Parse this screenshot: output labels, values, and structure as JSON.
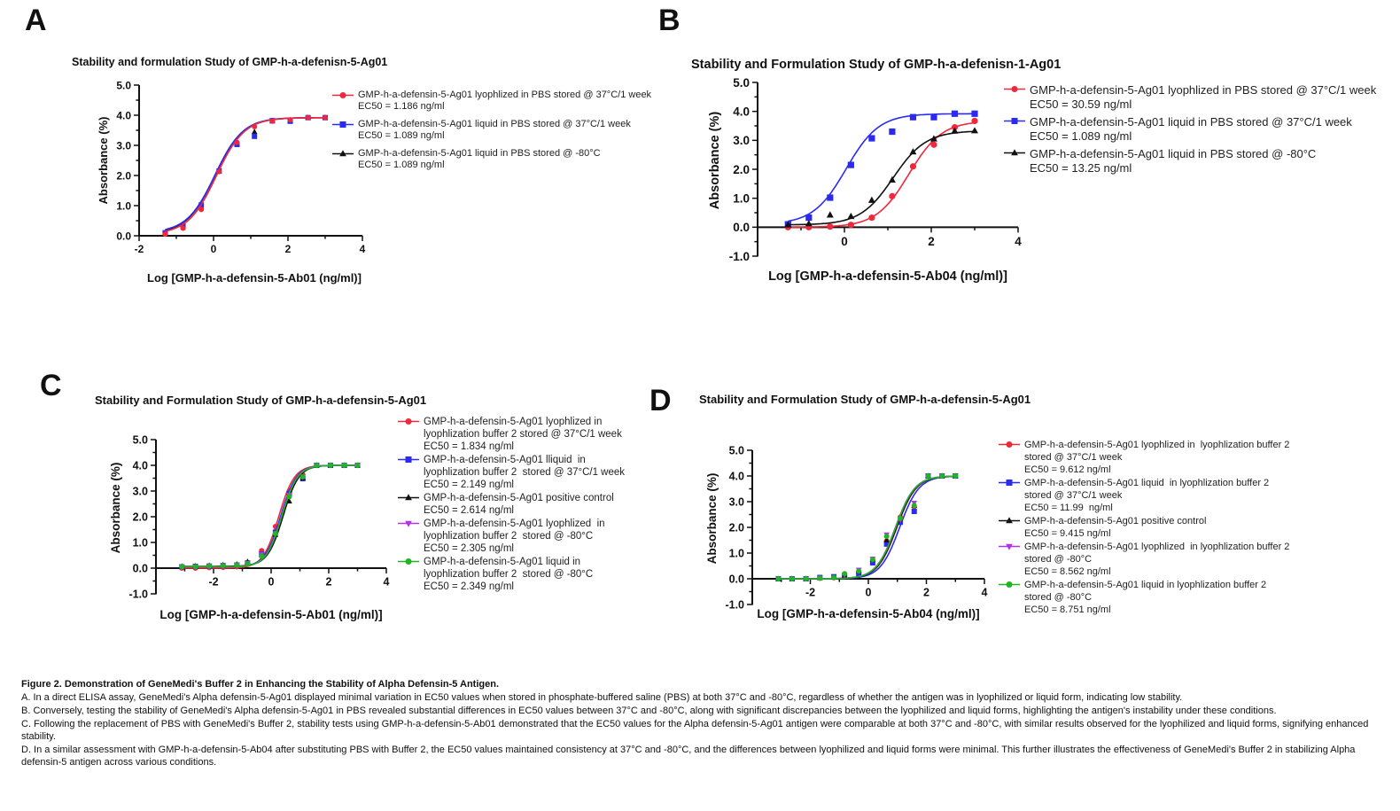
{
  "panel_letters": [
    "A",
    "B",
    "C",
    "D"
  ],
  "chart_data": [
    {
      "type": "line",
      "panel": "A",
      "title": "Stability and formulation Study of GMP-h-a-defenisn-5-Ag01",
      "xlabel": "Log [GMP-h-a-defensin-5-Ab01 (ng/ml)]",
      "ylabel": "Absorbance (%)",
      "xlim": [
        -2,
        4
      ],
      "ylim": [
        0,
        5
      ],
      "xticks": [
        "-2",
        "0",
        "2",
        "4"
      ],
      "yticks": [
        "0.0",
        "1.0",
        "2.0",
        "3.0",
        "4.0",
        "5.0"
      ],
      "legend_position": "right",
      "x": [
        -1.3,
        -0.82,
        -0.33,
        0.15,
        0.63,
        1.1,
        1.58,
        2.06,
        2.54,
        3.0
      ],
      "series": [
        {
          "name": "GMP-h-a-defensin-5-Ag01 liquid in PBS stored @ -80°C",
          "ec50": "EC50 = 1.089 ng/ml",
          "ec50_value": 1.089,
          "color": "#111111",
          "marker": "triangle",
          "values": [
            0.08,
            0.3,
            0.95,
            2.14,
            3.05,
            3.45,
            3.8,
            3.82,
            3.92,
            3.92
          ]
        },
        {
          "name": "GMP-h-a-defensin-5-Ag01 liquid in PBS stored @ 37°C/1 week",
          "ec50": "EC50 = 1.089 ng/ml",
          "ec50_value": 1.089,
          "color": "#2b2bf0",
          "marker": "square",
          "values": [
            0.1,
            0.33,
            1.02,
            2.15,
            3.03,
            3.3,
            3.82,
            3.8,
            3.92,
            3.92
          ]
        },
        {
          "name": "GMP-h-a-defensin-5-Ag01 lyophlized in PBS stored @ 37°C/1 week",
          "ec50": "EC50 = 1.186 ng/ml",
          "ec50_value": 1.186,
          "color": "#f0283c",
          "marker": "circle",
          "values": [
            0.05,
            0.25,
            0.87,
            2.13,
            3.1,
            3.62,
            3.8,
            3.85,
            3.92,
            3.92
          ]
        }
      ],
      "legend_order": [
        2,
        1,
        0
      ]
    },
    {
      "type": "line",
      "panel": "B",
      "title": "Stability and Formulation Study of GMP-h-a-defenisn-1-Ag01",
      "xlabel": "Log [GMP-h-a-defensin-5-Ab04 (ng/ml)]",
      "ylabel": "Absorbance (%)",
      "xlim": [
        -2,
        4
      ],
      "ylim": [
        -1,
        5
      ],
      "xticks": [
        "0",
        "2",
        "4"
      ],
      "yticks": [
        "-1.0",
        "0.0",
        "1.0",
        "2.0",
        "3.0",
        "4.0",
        "5.0"
      ],
      "legend_position": "right",
      "x": [
        -1.3,
        -0.82,
        -0.33,
        0.15,
        0.63,
        1.1,
        1.58,
        2.06,
        2.54,
        3.0
      ],
      "series": [
        {
          "name": "GMP-h-a-defensin-5-Ag01 lyophlized in PBS stored @ 37°C/1 week",
          "ec50": "EC50 = 30.59 ng/ml",
          "ec50_value": 30.59,
          "color": "#f0283c",
          "marker": "circle",
          "values": [
            0.0,
            0.0,
            0.02,
            0.08,
            0.33,
            1.07,
            2.1,
            2.85,
            3.45,
            3.67
          ]
        },
        {
          "name": "GMP-h-a-defensin-5-Ag01 liquid in PBS stored @ 37°C/1 week",
          "ec50": "EC50 = 1.089 ng/ml",
          "ec50_value": 1.089,
          "color": "#2b2bf0",
          "marker": "square",
          "values": [
            0.1,
            0.33,
            1.02,
            2.15,
            3.07,
            3.3,
            3.8,
            3.8,
            3.92,
            3.92
          ]
        },
        {
          "name": "GMP-h-a-defensin-5-Ag01 liquid in PBS stored @ -80°C",
          "ec50": "EC50 = 13.25 ng/ml",
          "ec50_value": 13.25,
          "color": "#111111",
          "marker": "triangle",
          "values": [
            0.08,
            0.12,
            0.42,
            0.37,
            0.93,
            1.63,
            2.6,
            3.05,
            3.32,
            3.33
          ]
        }
      ],
      "legend_order": [
        0,
        1,
        2
      ]
    },
    {
      "type": "line",
      "panel": "C",
      "title": "Stability and Formulation Study of GMP-h-a-defensin-5-Ag01",
      "xlabel": "Log [GMP-h-a-defensin-5-Ab01 (ng/ml)]",
      "ylabel": "Absorbance (%)",
      "xlim": [
        -4,
        4
      ],
      "ylim": [
        -1,
        5
      ],
      "xticks": [
        "-2",
        "0",
        "2",
        "4"
      ],
      "yticks": [
        "-1.0",
        "0.0",
        "1.0",
        "2.0",
        "3.0",
        "4.0",
        "5.0"
      ],
      "legend_position": "right",
      "x": [
        -3.1,
        -2.63,
        -2.15,
        -1.67,
        -1.19,
        -0.82,
        -0.33,
        0.15,
        0.63,
        1.1,
        1.58,
        2.06,
        2.54,
        3.0
      ],
      "series": [
        {
          "name": "GMP-h-a-defensin-5-Ag01 lyophlized in\nlyophlization buffer 2 stored @ 37°C/1 week",
          "ec50": "EC50 = 1.834 ng/ml",
          "ec50_value": 1.834,
          "color": "#f0283c",
          "marker": "circle",
          "values": [
            0.0,
            0.0,
            0.02,
            0.03,
            0.05,
            0.15,
            0.68,
            1.62,
            3.0,
            3.63,
            4.0,
            4.0,
            4.0,
            4.0
          ]
        },
        {
          "name": "GMP-h-a-defensin-5-Ag01 lliquid  in\nlyophlization buffer 2  stored @ 37°C/1 week",
          "ec50": "EC50 = 2.149 ng/ml",
          "ec50_value": 2.149,
          "color": "#2b2bf0",
          "marker": "square",
          "values": [
            0.05,
            0.07,
            0.08,
            0.1,
            0.12,
            0.2,
            0.55,
            1.4,
            2.9,
            3.48,
            4.0,
            4.0,
            4.0,
            4.0
          ]
        },
        {
          "name": "GMP-h-a-defensin-5-Ag01 positive control",
          "ec50": "EC50 = 2.614 ng/ml",
          "ec50_value": 2.614,
          "color": "#111111",
          "marker": "triangle",
          "values": [
            0.07,
            0.08,
            0.1,
            0.12,
            0.15,
            0.25,
            0.5,
            1.3,
            2.6,
            3.5,
            4.0,
            4.0,
            4.0,
            4.0
          ]
        },
        {
          "name": "GMP-h-a-defensin-5-Ag01 lyophlized  in\nlyophlization buffer 2  stored @ -80°C",
          "ec50": "EC50 = 2.305 ng/ml",
          "ec50_value": 2.305,
          "color": "#b233e6",
          "marker": "triangle-down",
          "values": [
            0.05,
            0.06,
            0.08,
            0.1,
            0.12,
            0.2,
            0.55,
            1.35,
            2.85,
            3.55,
            4.0,
            4.0,
            4.0,
            4.0
          ]
        },
        {
          "name": "GMP-h-a-defensin-5-Ag01 liquid in\nlyophlization buffer 2  stored @ -80°C",
          "ec50": "EC50 = 2.349 ng/ml",
          "ec50_value": 2.349,
          "color": "#22b422",
          "marker": "circle",
          "values": [
            0.05,
            0.06,
            0.08,
            0.1,
            0.12,
            0.18,
            0.48,
            1.35,
            2.78,
            3.55,
            4.0,
            4.0,
            4.0,
            4.0
          ]
        }
      ],
      "legend_order": [
        0,
        1,
        2,
        3,
        4
      ]
    },
    {
      "type": "line",
      "panel": "D",
      "title": "Stability and Formulation Study of GMP-h-a-defensin-5-Ag01",
      "xlabel": "Log [GMP-h-a-defensin-5-Ab04 (ng/ml)]",
      "ylabel": "Absorbance (%)",
      "xlim": [
        -4,
        4
      ],
      "ylim": [
        -1,
        5
      ],
      "xticks": [
        "-2",
        "0",
        "2",
        "4"
      ],
      "yticks": [
        "-1.0",
        "0.0",
        "1.0",
        "2.0",
        "3.0",
        "4.0",
        "5.0"
      ],
      "legend_position": "right",
      "x": [
        -3.1,
        -2.63,
        -2.15,
        -1.67,
        -1.19,
        -0.82,
        -0.33,
        0.15,
        0.63,
        1.1,
        1.58,
        2.06,
        2.54,
        3.0
      ],
      "series": [
        {
          "name": "GMP-h-a-defensin-5-Ag01 lyophlized in  lyophlization buffer 2\nstored @ 37°C/1 week",
          "ec50": "EC50 = 9.612 ng/ml",
          "ec50_value": 9.612,
          "color": "#f0283c",
          "marker": "circle",
          "values": [
            0.0,
            0.0,
            0.0,
            0.02,
            0.04,
            0.1,
            0.28,
            0.73,
            1.47,
            2.4,
            2.8,
            4.0,
            4.0,
            4.0
          ]
        },
        {
          "name": "GMP-h-a-defensin-5-Ag01 liquid  in lyophlization buffer 2\nstored @ 37°C/1 week",
          "ec50": "EC50 = 11.99  ng/ml",
          "ec50_value": 11.99,
          "color": "#2b2bf0",
          "marker": "square",
          "values": [
            0.0,
            0.0,
            0.0,
            0.05,
            0.08,
            0.12,
            0.18,
            0.62,
            1.35,
            2.2,
            2.62,
            4.0,
            4.0,
            4.0
          ]
        },
        {
          "name": "GMP-h-a-defensin-5-Ag01 positive control",
          "ec50": "EC50 = 9.415 ng/ml",
          "ec50_value": 9.415,
          "color": "#111111",
          "marker": "triangle",
          "values": [
            0.0,
            0.0,
            0.0,
            0.03,
            0.05,
            0.12,
            0.3,
            0.75,
            1.5,
            2.35,
            2.85,
            4.0,
            4.0,
            4.0
          ]
        },
        {
          "name": "GMP-h-a-defensin-5-Ag01 lyophlized  in lyophlization buffer 2\nstored @ -80°C",
          "ec50": "EC50 = 8.562 ng/ml",
          "ec50_value": 8.562,
          "color": "#b233e6",
          "marker": "triangle-down",
          "values": [
            0.0,
            0.0,
            0.0,
            0.03,
            0.05,
            0.15,
            0.35,
            0.78,
            1.72,
            2.3,
            2.95,
            4.0,
            4.0,
            4.0
          ]
        },
        {
          "name": "GMP-h-a-defensin-5-Ag01 liquid in lyophlization buffer 2\nstored @ -80°C",
          "ec50": "EC50 = 8.751 ng/ml",
          "ec50_value": 8.751,
          "color": "#22b422",
          "marker": "circle",
          "values": [
            0.0,
            0.0,
            0.0,
            0.03,
            0.05,
            0.2,
            0.3,
            0.75,
            1.65,
            2.35,
            2.85,
            4.0,
            4.0,
            4.0
          ]
        }
      ],
      "legend_order": [
        0,
        1,
        2,
        3,
        4
      ]
    }
  ],
  "caption": {
    "title": "Figure 2. Demonstration of GeneMedi's Buffer 2 in Enhancing the Stability of Alpha Defensin-5 Antigen.",
    "paragraphs": [
      "A. In a direct ELISA assay, GeneMedi's Alpha defensin-5-Ag01 displayed minimal variation in EC50 values when stored in phosphate-buffered saline (PBS) at both 37°C and -80°C, regardless of whether the antigen was in lyophilized or liquid form, indicating low stability.",
      "B. Conversely, testing the stability of GeneMedi's Alpha defensin-5-Ag01 in PBS revealed substantial differences in EC50 values between 37°C and -80°C, along with significant discrepancies between the lyophilized and liquid forms, highlighting the antigen's instability under these conditions.",
      "C. Following the replacement of PBS with GeneMedi's Buffer 2, stability tests using GMP-h-a-defensin-5-Ab01 demonstrated that the EC50 values for the Alpha defensin-5-Ag01 antigen were comparable at both 37°C and -80°C, with similar results observed for the lyophilized and liquid forms, signifying enhanced stability.",
      "D. In a similar assessment with GMP-h-a-defensin-5-Ab04 after substituting PBS with Buffer 2, the EC50 values maintained consistency at 37°C and -80°C, and the differences between lyophilized and liquid forms were minimal. This further illustrates the effectiveness of GeneMedi's Buffer 2 in stabilizing Alpha defensin-5 antigen across various conditions."
    ]
  }
}
